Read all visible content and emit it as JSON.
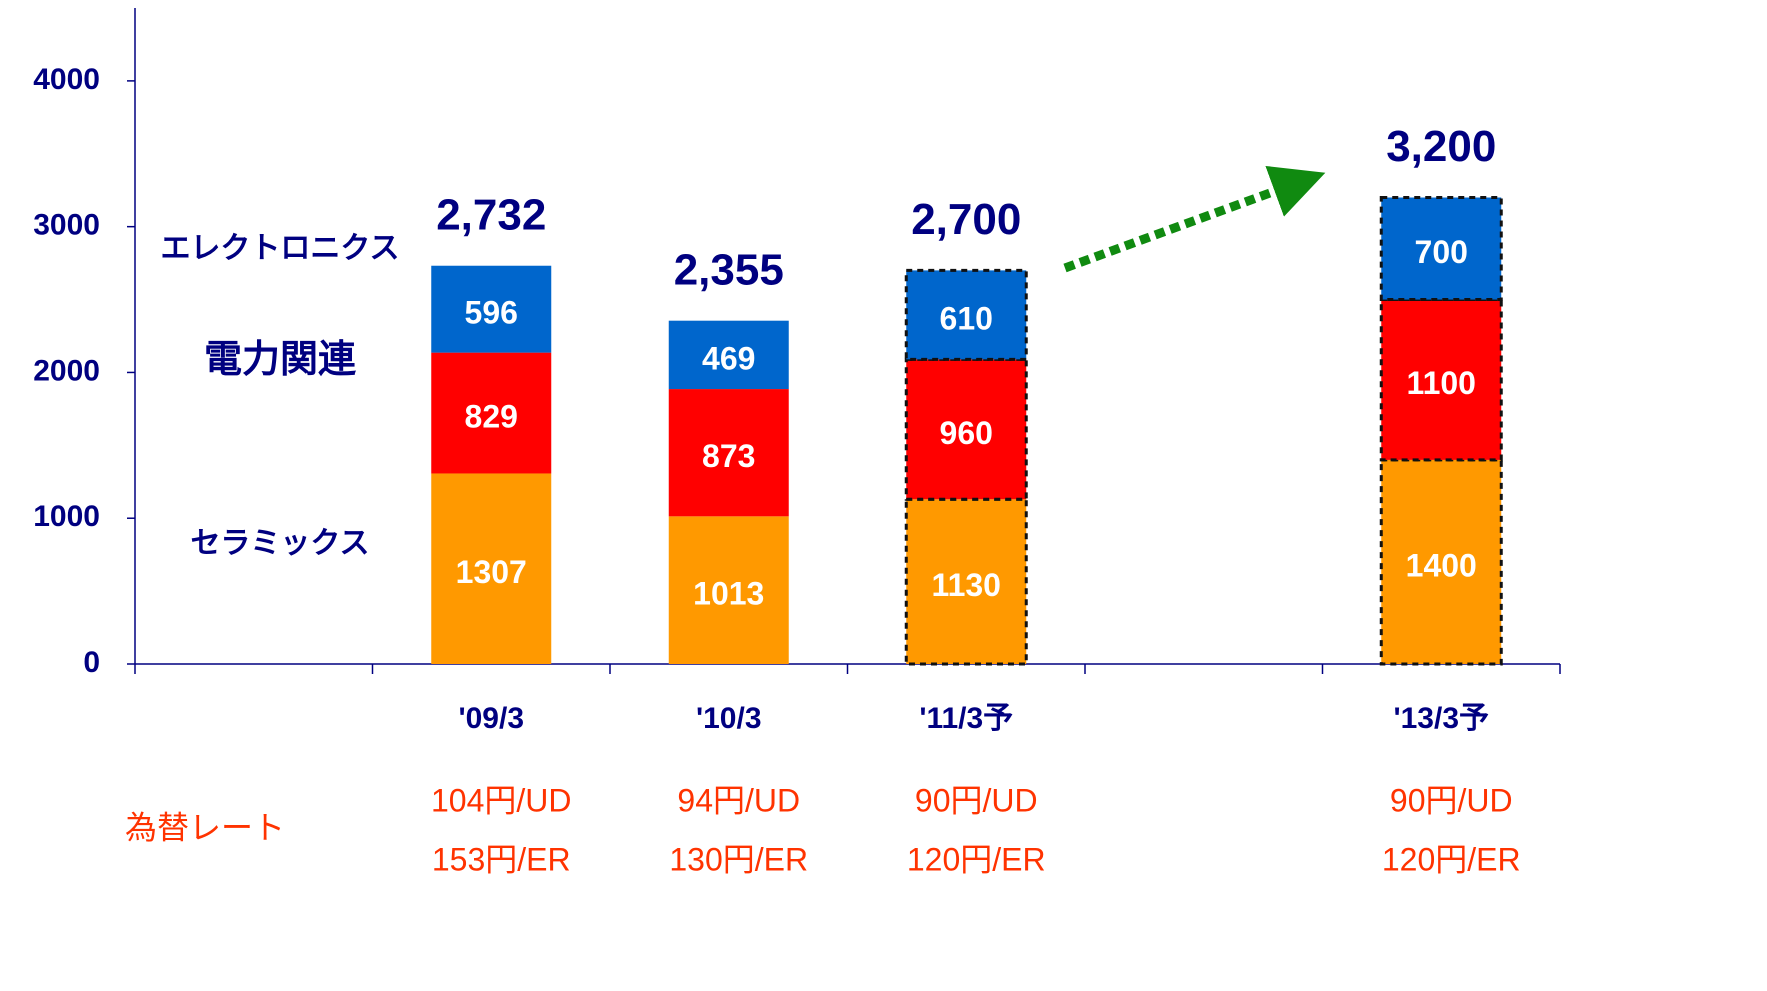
{
  "chart_data": {
    "type": "stacked_bar",
    "categories": [
      null,
      "'09/3",
      "'10/3",
      "'11/3予",
      null,
      "'13/3予"
    ],
    "series": [
      {
        "name": "セラミックス",
        "color": "#ff9900",
        "values": [
          null,
          1307,
          1013,
          1130,
          null,
          1400
        ]
      },
      {
        "name": "電力関連",
        "color": "#ff0000",
        "values": [
          null,
          829,
          873,
          960,
          null,
          1100
        ]
      },
      {
        "name": "エレクトロニクス",
        "color": "#0066cc",
        "values": [
          null,
          596,
          469,
          610,
          null,
          700
        ]
      }
    ],
    "totals": {
      "values": [
        null,
        2732,
        2355,
        2700,
        null,
        3200
      ],
      "value_labels": [
        null,
        "2,732",
        "2,355",
        "2,700",
        null,
        "3,200"
      ]
    },
    "forecast": [
      false,
      false,
      false,
      true,
      false,
      true
    ],
    "ylim": [
      0,
      4500
    ],
    "yticks": [
      0,
      1000,
      2000,
      3000,
      4000
    ],
    "exchange_rates": {
      "label": "為替レート",
      "usd": [
        null,
        "104円/UD",
        "94円/UD",
        "90円/UD",
        null,
        "90円/UD"
      ],
      "eur": [
        null,
        "153円/ER",
        "130円/ER",
        "120円/ER",
        null,
        "120円/ER"
      ]
    }
  }
}
